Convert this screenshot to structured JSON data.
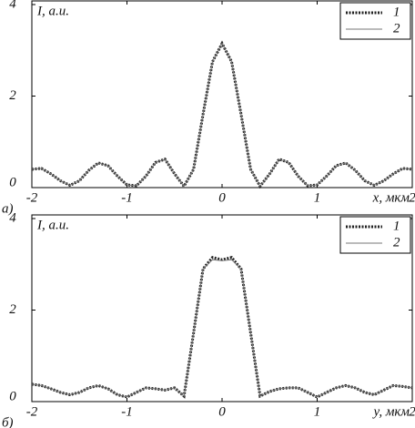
{
  "chart_data": [
    {
      "type": "line",
      "panel_label": "а)",
      "y_label": "I, а.и.",
      "x_label": "x, мкм",
      "xlim": [
        -2,
        2
      ],
      "ylim": [
        0,
        4
      ],
      "xticks": [
        -2,
        -1,
        0,
        1,
        2
      ],
      "yticks": [
        0,
        2,
        4
      ],
      "legend": "upper right",
      "x": [
        -2,
        -1.9,
        -1.8,
        -1.7,
        -1.6,
        -1.5,
        -1.4,
        -1.3,
        -1.2,
        -1.1,
        -1,
        -0.9,
        -0.8,
        -0.7,
        -0.6,
        -0.5,
        -0.4,
        -0.3,
        -0.2,
        -0.1,
        0,
        0.1,
        0.2,
        0.3,
        0.4,
        0.5,
        0.6,
        0.7,
        0.8,
        0.9,
        1,
        1.1,
        1.2,
        1.3,
        1.4,
        1.5,
        1.6,
        1.7,
        1.8,
        1.9,
        2
      ],
      "series": [
        {
          "name": "1",
          "color": "#222222",
          "style": "dotted",
          "values": [
            0.4,
            0.42,
            0.3,
            0.15,
            0.05,
            0.15,
            0.38,
            0.54,
            0.48,
            0.25,
            0.06,
            0.04,
            0.25,
            0.55,
            0.62,
            0.3,
            0.03,
            0.4,
            1.6,
            2.75,
            3.15,
            2.75,
            1.6,
            0.4,
            0.03,
            0.3,
            0.62,
            0.55,
            0.25,
            0.04,
            0.06,
            0.25,
            0.48,
            0.54,
            0.38,
            0.15,
            0.05,
            0.15,
            0.3,
            0.42,
            0.4
          ]
        },
        {
          "name": "2",
          "color": "#777777",
          "style": "solid",
          "values": [
            0.4,
            0.42,
            0.3,
            0.15,
            0.05,
            0.15,
            0.38,
            0.54,
            0.48,
            0.25,
            0.06,
            0.04,
            0.25,
            0.55,
            0.62,
            0.3,
            0.03,
            0.4,
            1.6,
            2.75,
            3.15,
            2.75,
            1.6,
            0.4,
            0.03,
            0.3,
            0.62,
            0.55,
            0.25,
            0.04,
            0.06,
            0.25,
            0.48,
            0.54,
            0.38,
            0.15,
            0.05,
            0.15,
            0.3,
            0.42,
            0.4
          ]
        }
      ]
    },
    {
      "type": "line",
      "panel_label": "б)",
      "y_label": "I, а.и.",
      "x_label": "y, мкм",
      "xlim": [
        -2,
        2
      ],
      "ylim": [
        0,
        4
      ],
      "xticks": [
        -2,
        -1,
        0,
        1,
        2
      ],
      "yticks": [
        0,
        2,
        4
      ],
      "legend": "upper right",
      "x": [
        -2,
        -1.9,
        -1.8,
        -1.7,
        -1.6,
        -1.5,
        -1.4,
        -1.3,
        -1.2,
        -1.1,
        -1,
        -0.9,
        -0.8,
        -0.7,
        -0.6,
        -0.5,
        -0.4,
        -0.3,
        -0.2,
        -0.1,
        0,
        0.1,
        0.2,
        0.3,
        0.4,
        0.5,
        0.6,
        0.7,
        0.8,
        0.9,
        1,
        1.1,
        1.2,
        1.3,
        1.4,
        1.5,
        1.6,
        1.7,
        1.8,
        1.9,
        2
      ],
      "series": [
        {
          "name": "1",
          "color": "#222222",
          "style": "dotted",
          "values": [
            0.38,
            0.35,
            0.28,
            0.2,
            0.15,
            0.2,
            0.3,
            0.35,
            0.28,
            0.15,
            0.1,
            0.2,
            0.3,
            0.28,
            0.25,
            0.3,
            0.12,
            1.5,
            2.9,
            3.15,
            3.1,
            3.15,
            2.9,
            1.5,
            0.12,
            0.22,
            0.28,
            0.3,
            0.3,
            0.2,
            0.1,
            0.2,
            0.3,
            0.35,
            0.3,
            0.2,
            0.15,
            0.25,
            0.35,
            0.33,
            0.3
          ]
        },
        {
          "name": "2",
          "color": "#777777",
          "style": "solid",
          "values": [
            0.38,
            0.35,
            0.28,
            0.2,
            0.15,
            0.2,
            0.3,
            0.35,
            0.28,
            0.15,
            0.1,
            0.2,
            0.3,
            0.28,
            0.25,
            0.3,
            0.12,
            1.5,
            2.9,
            3.1,
            3.08,
            3.1,
            2.9,
            1.5,
            0.12,
            0.22,
            0.28,
            0.3,
            0.3,
            0.2,
            0.1,
            0.2,
            0.3,
            0.35,
            0.3,
            0.2,
            0.15,
            0.25,
            0.35,
            0.33,
            0.3
          ]
        }
      ]
    }
  ]
}
